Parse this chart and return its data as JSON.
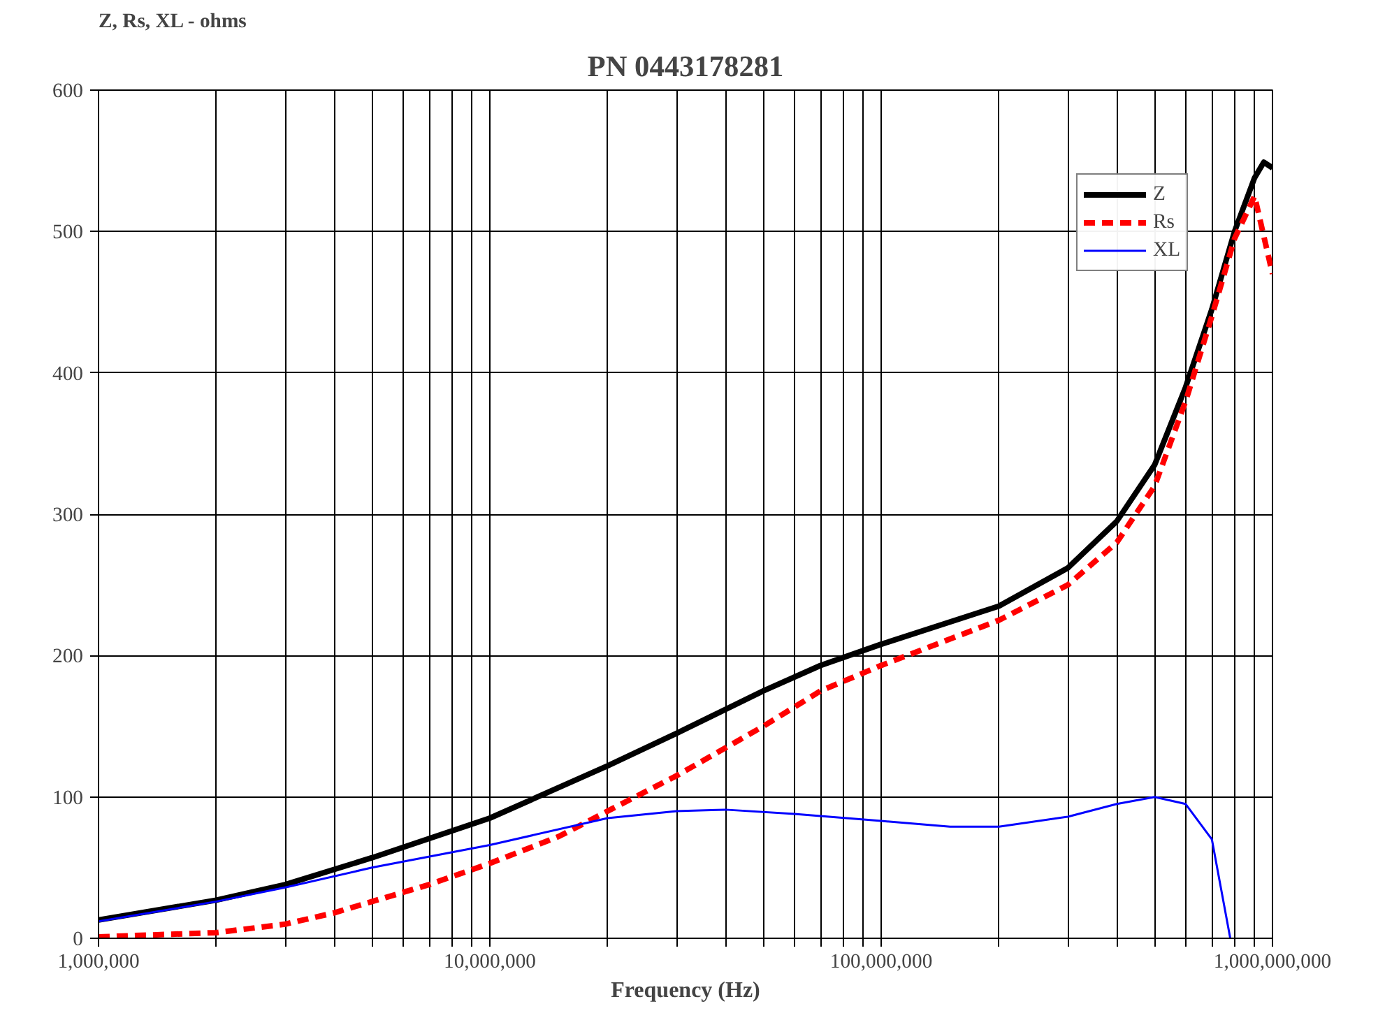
{
  "chart_data": {
    "type": "line",
    "title": "PN 0443178281",
    "xlabel": "Frequency (Hz)",
    "ylabel": "Z, Rs, XL - ohms",
    "log": "x",
    "grid": true,
    "legend": "top right",
    "marker": "none",
    "xlim": [
      1000000,
      1000000000
    ],
    "ylim": [
      0,
      600
    ],
    "xticks": [
      {
        "value": 1000000,
        "label": "1,000,000"
      },
      {
        "value": 2000000,
        "label": null
      },
      {
        "value": 3000000,
        "label": null
      },
      {
        "value": 4000000,
        "label": null
      },
      {
        "value": 5000000,
        "label": null
      },
      {
        "value": 6000000,
        "label": null
      },
      {
        "value": 7000000,
        "label": null
      },
      {
        "value": 8000000,
        "label": null
      },
      {
        "value": 9000000,
        "label": null
      },
      {
        "value": 10000000,
        "label": "10,000,000"
      },
      {
        "value": 20000000,
        "label": null
      },
      {
        "value": 30000000,
        "label": null
      },
      {
        "value": 40000000,
        "label": null
      },
      {
        "value": 50000000,
        "label": null
      },
      {
        "value": 60000000,
        "label": null
      },
      {
        "value": 70000000,
        "label": null
      },
      {
        "value": 80000000,
        "label": null
      },
      {
        "value": 90000000,
        "label": null
      },
      {
        "value": 100000000,
        "label": "100,000,000"
      },
      {
        "value": 200000000,
        "label": null
      },
      {
        "value": 300000000,
        "label": null
      },
      {
        "value": 400000000,
        "label": null
      },
      {
        "value": 500000000,
        "label": null
      },
      {
        "value": 600000000,
        "label": null
      },
      {
        "value": 700000000,
        "label": null
      },
      {
        "value": 800000000,
        "label": null
      },
      {
        "value": 900000000,
        "label": null
      },
      {
        "value": 1000000000,
        "label": "1,000,000,000"
      }
    ],
    "yticks": [
      0,
      100,
      200,
      300,
      400,
      500,
      600
    ],
    "series": [
      {
        "name": "Z",
        "color": "#000000",
        "line_style": "solid",
        "x": [
          1000000,
          2000000,
          3000000,
          5000000,
          10000000,
          20000000,
          30000000,
          50000000,
          70000000,
          100000000,
          200000000,
          300000000,
          400000000,
          500000000,
          600000000,
          700000000,
          800000000,
          900000000,
          950000000,
          1000000000
        ],
        "values": [
          13,
          27,
          38,
          57,
          85,
          122,
          145,
          175,
          193,
          208,
          235,
          262,
          295,
          335,
          390,
          445,
          500,
          538,
          549,
          545
        ]
      },
      {
        "name": "Rs",
        "color": "#ff0000",
        "line_style": "dashed",
        "x": [
          1000000,
          2000000,
          3000000,
          4000000,
          5000000,
          7000000,
          10000000,
          15000000,
          20000000,
          30000000,
          50000000,
          70000000,
          100000000,
          200000000,
          300000000,
          400000000,
          500000000,
          600000000,
          700000000,
          800000000,
          900000000,
          1000000000
        ],
        "values": [
          1,
          4,
          10,
          18,
          26,
          38,
          53,
          72,
          90,
          115,
          150,
          175,
          193,
          225,
          250,
          280,
          320,
          380,
          440,
          495,
          525,
          470
        ]
      },
      {
        "name": "XL",
        "color": "#0000ff",
        "line_style": "solid",
        "x": [
          1000000,
          2000000,
          3000000,
          5000000,
          10000000,
          20000000,
          30000000,
          40000000,
          60000000,
          100000000,
          150000000,
          200000000,
          300000000,
          400000000,
          500000000,
          600000000,
          700000000,
          780000000
        ],
        "values": [
          12,
          26,
          36,
          50,
          66,
          85,
          90,
          91,
          88,
          83,
          79,
          79,
          86,
          95,
          100,
          95,
          70,
          0
        ]
      }
    ]
  }
}
